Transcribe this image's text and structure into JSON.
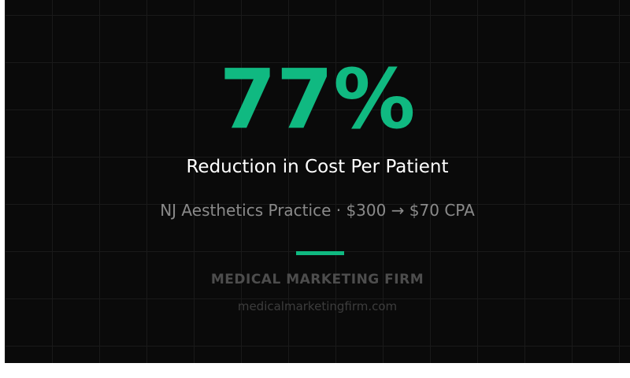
{
  "stat": {
    "value": "77%",
    "label": "Reduction in Cost Per Patient",
    "detail": "NJ Aesthetics Practice · $300 → $70 CPA"
  },
  "brand": {
    "name": "MEDICAL MARKETING FIRM",
    "url": "medicalmarketingfirm.com"
  },
  "colors": {
    "accent": "#10b981",
    "background": "#0a0a0a"
  }
}
